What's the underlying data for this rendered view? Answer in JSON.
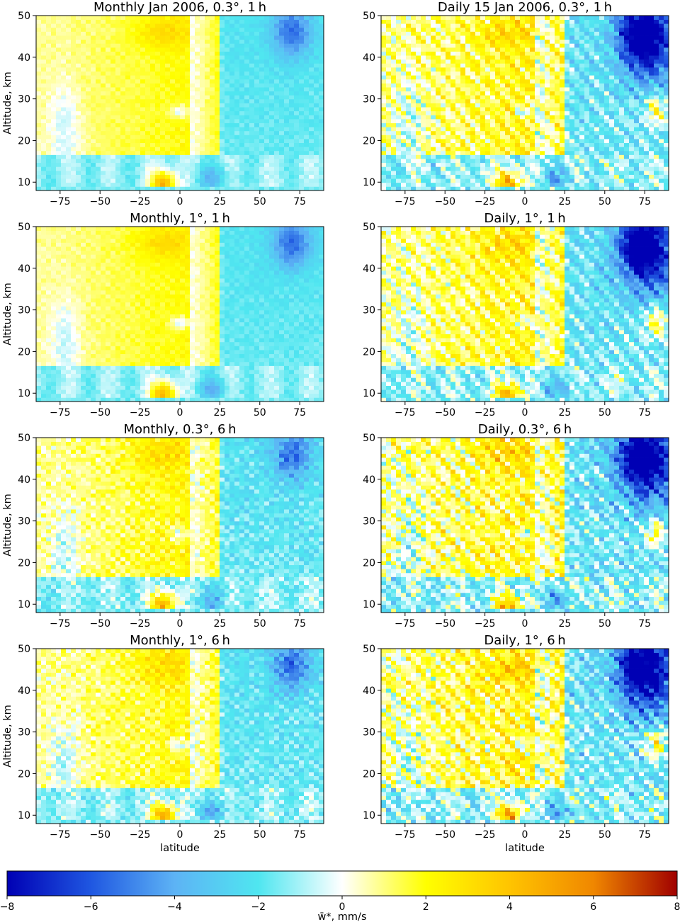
{
  "colors": {
    "colormap_stops": [
      "#0000b4",
      "#1f57e1",
      "#5db3f5",
      "#4fe6f0",
      "#ffffff",
      "#ffff00",
      "#ffc400",
      "#f08700",
      "#a00000"
    ],
    "axes_frame": "#000000"
  },
  "chart_data": {
    "type": "heatmap",
    "xlabel": "latitude",
    "ylabel": "Altitude, km",
    "xlim": [
      -90,
      90
    ],
    "ylim": [
      8,
      50
    ],
    "xticks": [
      "−75",
      "−50",
      "−25",
      "0",
      "25",
      "50",
      "75"
    ],
    "xtick_values": [
      -75,
      -50,
      -25,
      0,
      25,
      50,
      75
    ],
    "yticks": [
      "10",
      "20",
      "30",
      "40",
      "50"
    ],
    "ytick_values": [
      10,
      20,
      30,
      40,
      50
    ],
    "colorbar": {
      "label": "w̄*, mm/s",
      "range": [
        -8,
        8
      ],
      "ticks": [
        "−8",
        "−6",
        "−4",
        "−2",
        "0",
        "2",
        "4",
        "6",
        "8"
      ],
      "tick_values": [
        -8,
        -6,
        -4,
        -2,
        0,
        2,
        4,
        6,
        8
      ]
    },
    "panels": [
      {
        "title": "Monthly Jan 2006, 0.3°, 1 h",
        "kind": "monthly",
        "noise": 0.25
      },
      {
        "title": "Daily 15 Jan 2006, 0.3°, 1 h",
        "kind": "daily",
        "noise": 0.7
      },
      {
        "title": "Monthly, 1°, 1 h",
        "kind": "monthly",
        "noise": 0.25
      },
      {
        "title": "Daily, 1°, 1 h",
        "kind": "daily",
        "noise": 0.7
      },
      {
        "title": "Monthly, 0.3°, 6 h",
        "kind": "monthly",
        "noise": 0.6
      },
      {
        "title": "Daily, 0.3°, 6 h",
        "kind": "daily",
        "noise": 1.0
      },
      {
        "title": "Monthly, 1°, 6 h",
        "kind": "monthly",
        "noise": 0.6
      },
      {
        "title": "Daily, 1°, 6 h",
        "kind": "daily",
        "noise": 1.0
      }
    ]
  }
}
